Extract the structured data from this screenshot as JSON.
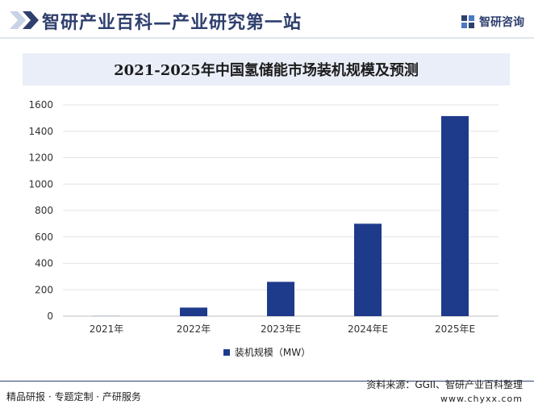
{
  "header": {
    "site_title": "智研产业百科—产业研究第一站",
    "logo_text": "智研咨询",
    "logo_icon": "zhiyan-logo-icon"
  },
  "colors": {
    "bar": "#1e3a8a",
    "title_band": "#e9eef8",
    "brand": "#2f3f6e"
  },
  "chart_data": {
    "type": "bar",
    "title": "2021-2025年中国氢储能市场装机规模及预测",
    "categories": [
      "2021年",
      "2022年",
      "2023年E",
      "2024年E",
      "2025年E"
    ],
    "series": [
      {
        "name": "装机规模（MW）",
        "values": [
          1,
          65,
          260,
          700,
          1515
        ]
      }
    ],
    "ylim": [
      0,
      1600
    ],
    "yticks": [
      0,
      200,
      400,
      600,
      800,
      1000,
      1200,
      1400,
      1600
    ],
    "grid": true,
    "legend_position": "bottom"
  },
  "footer": {
    "left_text": "精品研报 · 专题定制 · 产研服务",
    "source_text": "资料来源：GGII、智研产业百科整理",
    "url_text": "www.chyxx.com"
  }
}
